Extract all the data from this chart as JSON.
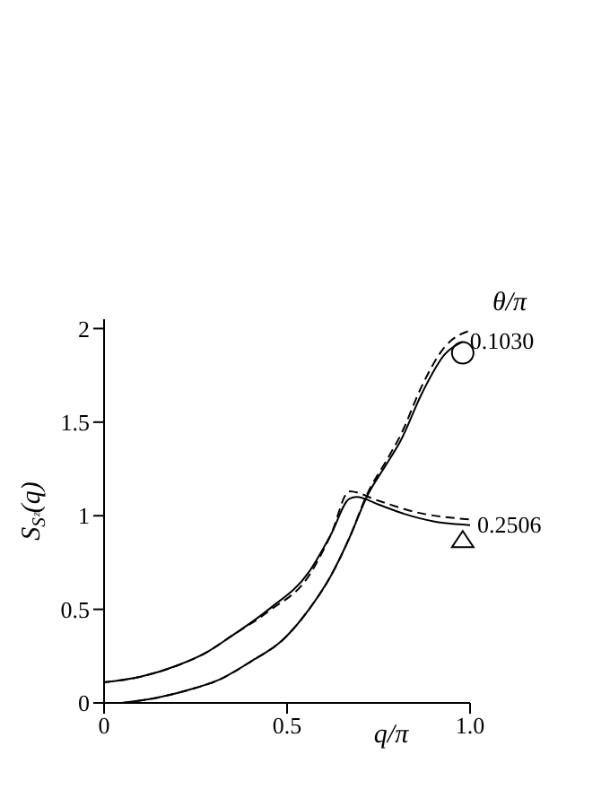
{
  "chart_data": {
    "type": "line",
    "xlabel": "q/π",
    "ylabel": "S$_{Sᶻ}$(q)",
    "legend_title": "θ/π",
    "xlim": [
      0,
      1
    ],
    "xticks": [
      0,
      0.5,
      {
        "value": 1,
        "label": "1.0"
      }
    ],
    "ylim": [
      0,
      2.05
    ],
    "yticks": [
      0,
      0.5,
      1,
      1.5,
      2
    ],
    "grid": false,
    "legend": false,
    "marker": "none",
    "series": [
      {
        "name": "0.1030",
        "color": "#000000",
        "line_style": "solid",
        "x": [
          0.05,
          0.15,
          0.25,
          0.31,
          0.4,
          0.49,
          0.56,
          0.62,
          0.67,
          0.72,
          0.77,
          0.81,
          0.87,
          0.93,
          0.98
        ],
        "values": [
          0,
          0.03,
          0.08,
          0.12,
          0.22,
          0.34,
          0.5,
          0.68,
          0.88,
          1.11,
          1.27,
          1.4,
          1.66,
          1.86,
          1.93
        ]
      },
      {
        "color": "#000000",
        "line_style": "dashed",
        "x": [
          0.05,
          0.15,
          0.25,
          0.31,
          0.4,
          0.49,
          0.56,
          0.62,
          0.67,
          0.72,
          0.77,
          0.81,
          0.87,
          0.93,
          1.0
        ],
        "values": [
          0,
          0.03,
          0.08,
          0.12,
          0.22,
          0.34,
          0.5,
          0.68,
          0.88,
          1.12,
          1.29,
          1.43,
          1.7,
          1.9,
          1.99
        ]
      },
      {
        "name": "0.2506",
        "color": "#000000",
        "line_style": "solid",
        "x": [
          0,
          0.1,
          0.2,
          0.28,
          0.35,
          0.45,
          0.56,
          0.62,
          0.67,
          0.69,
          0.75,
          0.82,
          0.9,
          1.0
        ],
        "values": [
          0.11,
          0.14,
          0.2,
          0.27,
          0.36,
          0.5,
          0.7,
          0.9,
          1.09,
          1.1,
          1.06,
          1.01,
          0.97,
          0.95
        ]
      },
      {
        "color": "#000000",
        "line_style": "dashed",
        "x": [
          0,
          0.1,
          0.2,
          0.28,
          0.35,
          0.45,
          0.56,
          0.62,
          0.67,
          0.75,
          0.85,
          1.0
        ],
        "values": [
          0.11,
          0.14,
          0.2,
          0.27,
          0.36,
          0.49,
          0.68,
          0.9,
          1.13,
          1.08,
          1.02,
          0.98
        ]
      },
      {
        "type": "scatter",
        "marker": "circle",
        "color": "#000000",
        "x": [
          0.98
        ],
        "values": [
          1.87
        ]
      },
      {
        "type": "scatter",
        "marker": "triangle",
        "color": "#000000",
        "x": [
          0.98
        ],
        "values": [
          0.88
        ]
      }
    ]
  }
}
